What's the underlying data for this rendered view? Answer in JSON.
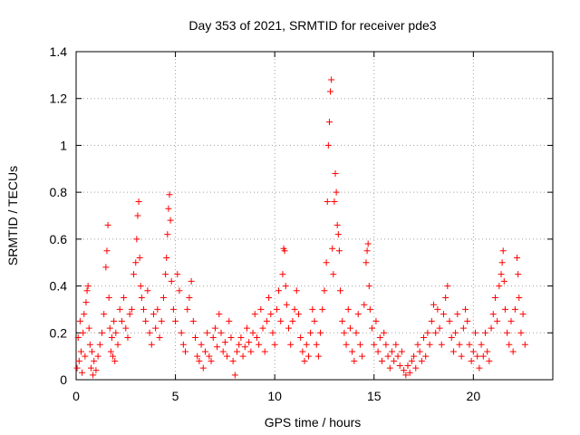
{
  "chart_data": {
    "type": "scatter",
    "title": "Day 353 of 2021, SRMTID for receiver pde3",
    "xlabel": "GPS time / hours",
    "ylabel": "SRMTID / TECUs",
    "xlim": [
      0,
      24
    ],
    "ylim": [
      0,
      1.4
    ],
    "xticks": [
      0,
      5,
      10,
      15,
      20
    ],
    "xtick_labels": [
      "0",
      "5",
      "10",
      "15",
      "20"
    ],
    "yticks": [
      0,
      0.2,
      0.4,
      0.6,
      0.8,
      1.0,
      1.2,
      1.4
    ],
    "ytick_labels": [
      "0",
      "0.2",
      "0.4",
      "0.6",
      "0.8",
      "1",
      "1.2",
      "1.4"
    ],
    "grid": true,
    "marker": "plus",
    "marker_color": "#ff0000",
    "series": [
      {
        "name": "SRMTID",
        "points": [
          [
            0.05,
            0.05
          ],
          [
            0.1,
            0.18
          ],
          [
            0.15,
            0.08
          ],
          [
            0.2,
            0.25
          ],
          [
            0.25,
            0.12
          ],
          [
            0.3,
            0.03
          ],
          [
            0.35,
            0.2
          ],
          [
            0.4,
            0.28
          ],
          [
            0.45,
            0.1
          ],
          [
            0.5,
            0.33
          ],
          [
            0.55,
            0.38
          ],
          [
            0.6,
            0.4
          ],
          [
            0.65,
            0.22
          ],
          [
            0.7,
            0.15
          ],
          [
            0.75,
            0.05
          ],
          [
            0.8,
            0.12
          ],
          [
            0.85,
            0.02
          ],
          [
            0.9,
            0.08
          ],
          [
            1.0,
            0.04
          ],
          [
            1.1,
            0.1
          ],
          [
            1.2,
            0.15
          ],
          [
            1.3,
            0.2
          ],
          [
            1.4,
            0.28
          ],
          [
            1.5,
            0.48
          ],
          [
            1.55,
            0.55
          ],
          [
            1.6,
            0.66
          ],
          [
            1.65,
            0.35
          ],
          [
            1.7,
            0.22
          ],
          [
            1.75,
            0.12
          ],
          [
            1.8,
            0.18
          ],
          [
            1.85,
            0.1
          ],
          [
            1.9,
            0.25
          ],
          [
            1.95,
            0.08
          ],
          [
            2.0,
            0.2
          ],
          [
            2.1,
            0.15
          ],
          [
            2.2,
            0.3
          ],
          [
            2.3,
            0.25
          ],
          [
            2.4,
            0.35
          ],
          [
            2.5,
            0.22
          ],
          [
            2.6,
            0.18
          ],
          [
            2.7,
            0.28
          ],
          [
            2.8,
            0.3
          ],
          [
            2.9,
            0.45
          ],
          [
            3.0,
            0.5
          ],
          [
            3.05,
            0.6
          ],
          [
            3.1,
            0.7
          ],
          [
            3.15,
            0.76
          ],
          [
            3.2,
            0.52
          ],
          [
            3.25,
            0.4
          ],
          [
            3.3,
            0.35
          ],
          [
            3.4,
            0.3
          ],
          [
            3.5,
            0.25
          ],
          [
            3.6,
            0.38
          ],
          [
            3.7,
            0.2
          ],
          [
            3.8,
            0.15
          ],
          [
            3.9,
            0.28
          ],
          [
            4.0,
            0.22
          ],
          [
            4.1,
            0.3
          ],
          [
            4.2,
            0.18
          ],
          [
            4.3,
            0.25
          ],
          [
            4.4,
            0.35
          ],
          [
            4.5,
            0.45
          ],
          [
            4.55,
            0.52
          ],
          [
            4.6,
            0.62
          ],
          [
            4.65,
            0.73
          ],
          [
            4.7,
            0.79
          ],
          [
            4.75,
            0.68
          ],
          [
            4.8,
            0.42
          ],
          [
            4.9,
            0.3
          ],
          [
            5.0,
            0.25
          ],
          [
            5.1,
            0.45
          ],
          [
            5.2,
            0.38
          ],
          [
            5.3,
            0.2
          ],
          [
            5.4,
            0.15
          ],
          [
            5.5,
            0.12
          ],
          [
            5.6,
            0.3
          ],
          [
            5.7,
            0.35
          ],
          [
            5.8,
            0.42
          ],
          [
            5.9,
            0.25
          ],
          [
            6.0,
            0.18
          ],
          [
            6.1,
            0.1
          ],
          [
            6.2,
            0.08
          ],
          [
            6.3,
            0.15
          ],
          [
            6.4,
            0.05
          ],
          [
            6.5,
            0.12
          ],
          [
            6.6,
            0.2
          ],
          [
            6.7,
            0.1
          ],
          [
            6.8,
            0.08
          ],
          [
            6.9,
            0.18
          ],
          [
            7.0,
            0.22
          ],
          [
            7.1,
            0.14
          ],
          [
            7.2,
            0.28
          ],
          [
            7.3,
            0.2
          ],
          [
            7.4,
            0.12
          ],
          [
            7.5,
            0.16
          ],
          [
            7.6,
            0.1
          ],
          [
            7.7,
            0.25
          ],
          [
            7.8,
            0.18
          ],
          [
            7.9,
            0.08
          ],
          [
            8.0,
            0.02
          ],
          [
            8.1,
            0.12
          ],
          [
            8.2,
            0.15
          ],
          [
            8.3,
            0.18
          ],
          [
            8.4,
            0.1
          ],
          [
            8.5,
            0.14
          ],
          [
            8.6,
            0.22
          ],
          [
            8.7,
            0.16
          ],
          [
            8.8,
            0.12
          ],
          [
            8.9,
            0.2
          ],
          [
            9.0,
            0.28
          ],
          [
            9.1,
            0.18
          ],
          [
            9.2,
            0.15
          ],
          [
            9.3,
            0.3
          ],
          [
            9.4,
            0.22
          ],
          [
            9.5,
            0.12
          ],
          [
            9.6,
            0.25
          ],
          [
            9.7,
            0.35
          ],
          [
            9.8,
            0.28
          ],
          [
            9.9,
            0.2
          ],
          [
            10.0,
            0.15
          ],
          [
            10.1,
            0.3
          ],
          [
            10.2,
            0.38
          ],
          [
            10.3,
            0.25
          ],
          [
            10.4,
            0.45
          ],
          [
            10.45,
            0.56
          ],
          [
            10.5,
            0.55
          ],
          [
            10.55,
            0.4
          ],
          [
            10.6,
            0.32
          ],
          [
            10.7,
            0.22
          ],
          [
            10.8,
            0.15
          ],
          [
            10.9,
            0.25
          ],
          [
            11.0,
            0.3
          ],
          [
            11.1,
            0.38
          ],
          [
            11.2,
            0.28
          ],
          [
            11.3,
            0.18
          ],
          [
            11.4,
            0.12
          ],
          [
            11.5,
            0.08
          ],
          [
            11.6,
            0.15
          ],
          [
            11.7,
            0.1
          ],
          [
            11.8,
            0.2
          ],
          [
            11.9,
            0.3
          ],
          [
            12.0,
            0.25
          ],
          [
            12.1,
            0.15
          ],
          [
            12.2,
            0.1
          ],
          [
            12.3,
            0.2
          ],
          [
            12.4,
            0.3
          ],
          [
            12.5,
            0.38
          ],
          [
            12.6,
            0.5
          ],
          [
            12.65,
            0.76
          ],
          [
            12.7,
            1.0
          ],
          [
            12.75,
            1.1
          ],
          [
            12.8,
            1.23
          ],
          [
            12.85,
            1.28
          ],
          [
            12.9,
            0.56
          ],
          [
            12.95,
            0.45
          ],
          [
            13.0,
            0.76
          ],
          [
            13.05,
            0.88
          ],
          [
            13.1,
            0.8
          ],
          [
            13.15,
            0.66
          ],
          [
            13.2,
            0.62
          ],
          [
            13.25,
            0.55
          ],
          [
            13.3,
            0.38
          ],
          [
            13.4,
            0.25
          ],
          [
            13.5,
            0.2
          ],
          [
            13.6,
            0.15
          ],
          [
            13.7,
            0.3
          ],
          [
            13.8,
            0.22
          ],
          [
            13.9,
            0.12
          ],
          [
            14.0,
            0.08
          ],
          [
            14.1,
            0.2
          ],
          [
            14.2,
            0.28
          ],
          [
            14.3,
            0.15
          ],
          [
            14.4,
            0.1
          ],
          [
            14.5,
            0.32
          ],
          [
            14.6,
            0.5
          ],
          [
            14.65,
            0.55
          ],
          [
            14.7,
            0.58
          ],
          [
            14.75,
            0.4
          ],
          [
            14.8,
            0.3
          ],
          [
            14.9,
            0.22
          ],
          [
            15.0,
            0.15
          ],
          [
            15.1,
            0.25
          ],
          [
            15.2,
            0.12
          ],
          [
            15.3,
            0.18
          ],
          [
            15.4,
            0.08
          ],
          [
            15.5,
            0.2
          ],
          [
            15.6,
            0.15
          ],
          [
            15.7,
            0.1
          ],
          [
            15.8,
            0.05
          ],
          [
            15.9,
            0.12
          ],
          [
            16.0,
            0.08
          ],
          [
            16.1,
            0.15
          ],
          [
            16.2,
            0.1
          ],
          [
            16.3,
            0.06
          ],
          [
            16.4,
            0.12
          ],
          [
            16.5,
            0.04
          ],
          [
            16.6,
            0.02
          ],
          [
            16.7,
            0.06
          ],
          [
            16.8,
            0.03
          ],
          [
            16.9,
            0.08
          ],
          [
            17.0,
            0.1
          ],
          [
            17.1,
            0.05
          ],
          [
            17.2,
            0.15
          ],
          [
            17.3,
            0.12
          ],
          [
            17.4,
            0.08
          ],
          [
            17.5,
            0.18
          ],
          [
            17.6,
            0.1
          ],
          [
            17.7,
            0.2
          ],
          [
            17.8,
            0.15
          ],
          [
            17.9,
            0.25
          ],
          [
            18.0,
            0.32
          ],
          [
            18.1,
            0.2
          ],
          [
            18.2,
            0.3
          ],
          [
            18.3,
            0.22
          ],
          [
            18.4,
            0.15
          ],
          [
            18.5,
            0.28
          ],
          [
            18.6,
            0.35
          ],
          [
            18.7,
            0.4
          ],
          [
            18.8,
            0.25
          ],
          [
            18.9,
            0.18
          ],
          [
            19.0,
            0.12
          ],
          [
            19.1,
            0.2
          ],
          [
            19.2,
            0.28
          ],
          [
            19.3,
            0.15
          ],
          [
            19.4,
            0.1
          ],
          [
            19.5,
            0.22
          ],
          [
            19.6,
            0.3
          ],
          [
            19.7,
            0.25
          ],
          [
            19.8,
            0.15
          ],
          [
            19.9,
            0.08
          ],
          [
            20.0,
            0.12
          ],
          [
            20.1,
            0.2
          ],
          [
            20.2,
            0.1
          ],
          [
            20.3,
            0.05
          ],
          [
            20.4,
            0.15
          ],
          [
            20.5,
            0.1
          ],
          [
            20.6,
            0.2
          ],
          [
            20.7,
            0.12
          ],
          [
            20.8,
            0.08
          ],
          [
            20.9,
            0.22
          ],
          [
            21.0,
            0.28
          ],
          [
            21.1,
            0.35
          ],
          [
            21.2,
            0.25
          ],
          [
            21.3,
            0.4
          ],
          [
            21.4,
            0.45
          ],
          [
            21.45,
            0.5
          ],
          [
            21.5,
            0.55
          ],
          [
            21.55,
            0.42
          ],
          [
            21.6,
            0.3
          ],
          [
            21.7,
            0.2
          ],
          [
            21.8,
            0.15
          ],
          [
            21.9,
            0.25
          ],
          [
            22.0,
            0.12
          ],
          [
            22.1,
            0.3
          ],
          [
            22.2,
            0.52
          ],
          [
            22.25,
            0.45
          ],
          [
            22.3,
            0.35
          ],
          [
            22.4,
            0.2
          ],
          [
            22.5,
            0.28
          ],
          [
            22.6,
            0.15
          ]
        ]
      }
    ]
  }
}
